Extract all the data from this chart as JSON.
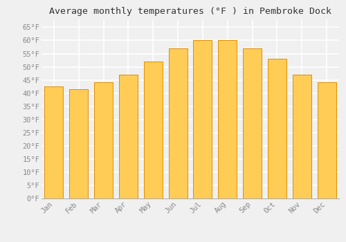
{
  "title": "Average monthly temperatures (°F ) in Pembroke Dock",
  "months": [
    "Jan",
    "Feb",
    "Mar",
    "Apr",
    "May",
    "Jun",
    "Jul",
    "Aug",
    "Sep",
    "Oct",
    "Nov",
    "Dec"
  ],
  "values": [
    42.5,
    41.5,
    44,
    47,
    52,
    57,
    60,
    60,
    57,
    53,
    47,
    44
  ],
  "bar_color_top": "#FFB700",
  "bar_color_bottom": "#FFCC55",
  "bar_edge_color": "#E09000",
  "ylim": [
    0,
    68
  ],
  "yticks": [
    0,
    5,
    10,
    15,
    20,
    25,
    30,
    35,
    40,
    45,
    50,
    55,
    60,
    65
  ],
  "ytick_labels": [
    "0°F",
    "5°F",
    "10°F",
    "15°F",
    "20°F",
    "25°F",
    "30°F",
    "35°F",
    "40°F",
    "45°F",
    "50°F",
    "55°F",
    "60°F",
    "65°F"
  ],
  "background_color": "#f0f0f0",
  "plot_bg_color": "#f0f0f0",
  "grid_color": "#ffffff",
  "title_fontsize": 9.5,
  "tick_fontsize": 7.5,
  "font_family": "monospace",
  "tick_color": "#888888"
}
